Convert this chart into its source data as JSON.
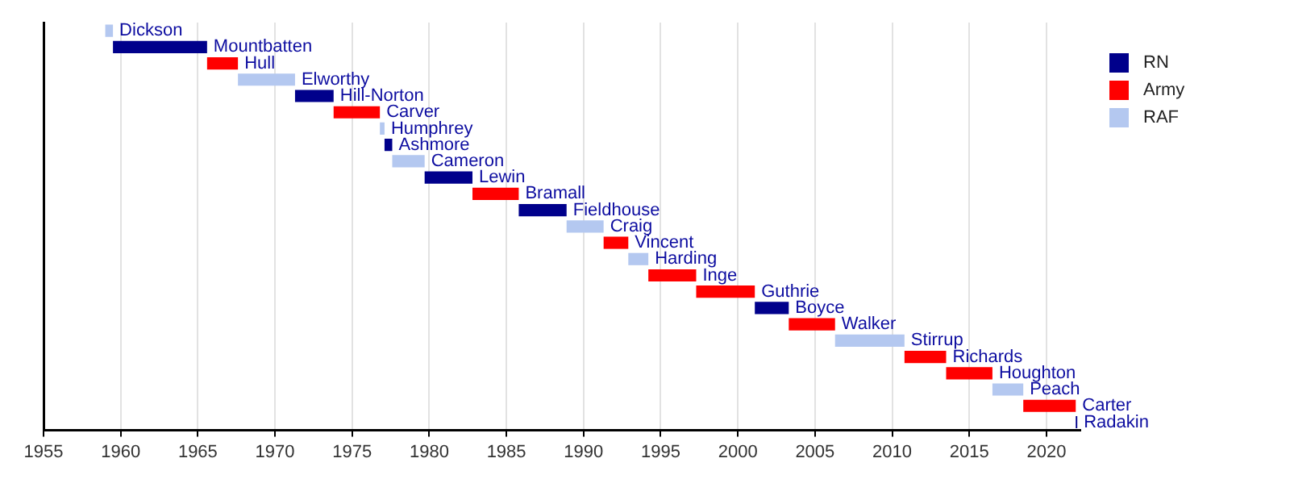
{
  "chart_data": {
    "type": "bar",
    "orientation": "horizontal",
    "categories": [
      "Dickson",
      "Mountbatten",
      "Hull",
      "Elworthy",
      "Hill-Norton",
      "Carver",
      "Humphrey",
      "Ashmore",
      "Cameron",
      "Lewin",
      "Bramall",
      "Fieldhouse",
      "Craig",
      "Vincent",
      "Harding",
      "Inge",
      "Guthrie",
      "Boyce",
      "Walker",
      "Stirrup",
      "Richards",
      "Houghton",
      "Peach",
      "Carter",
      "Radakin"
    ],
    "series": [
      {
        "name": "RN",
        "color": "#00008b",
        "base": [
          null,
          1959.5,
          null,
          null,
          1971.3,
          null,
          null,
          1977.1,
          null,
          1979.7,
          null,
          1985.8,
          null,
          null,
          null,
          null,
          null,
          2001.1,
          null,
          null,
          null,
          null,
          null,
          null,
          2021.9
        ],
        "values": [
          null,
          6.1,
          null,
          null,
          2.5,
          null,
          null,
          0.5,
          null,
          3.1,
          null,
          3.1,
          null,
          null,
          null,
          null,
          null,
          2.2,
          null,
          null,
          null,
          null,
          null,
          null,
          0.1
        ]
      },
      {
        "name": "Army",
        "color": "#ff0000",
        "base": [
          null,
          null,
          1965.6,
          null,
          null,
          1973.8,
          null,
          null,
          null,
          null,
          1982.8,
          null,
          null,
          1991.3,
          null,
          1994.2,
          1997.3,
          null,
          2003.3,
          null,
          2010.8,
          2013.5,
          null,
          2018.5,
          null
        ],
        "values": [
          null,
          null,
          2.0,
          null,
          null,
          3.0,
          null,
          null,
          null,
          null,
          3.0,
          null,
          null,
          1.6,
          null,
          3.1,
          3.8,
          null,
          3.0,
          null,
          2.7,
          3.0,
          null,
          3.4,
          null
        ]
      },
      {
        "name": "RAF",
        "color": "#b4c8f0",
        "base": [
          1959.0,
          null,
          null,
          1967.6,
          null,
          null,
          1976.8,
          null,
          1977.6,
          null,
          null,
          null,
          1988.9,
          null,
          1992.9,
          null,
          null,
          null,
          null,
          2006.3,
          null,
          null,
          2016.5,
          null,
          null
        ],
        "values": [
          0.5,
          null,
          null,
          3.7,
          null,
          null,
          0.3,
          null,
          2.1,
          null,
          null,
          null,
          2.4,
          null,
          1.3,
          null,
          null,
          null,
          null,
          4.5,
          null,
          null,
          2.0,
          null,
          null
        ]
      }
    ],
    "xlim": [
      1955,
      2022.2
    ],
    "xticks": [
      1955,
      1960,
      1965,
      1970,
      1975,
      1980,
      1985,
      1990,
      1995,
      2000,
      2005,
      2010,
      2015,
      2020
    ],
    "grid": "x",
    "legend": "top right"
  }
}
